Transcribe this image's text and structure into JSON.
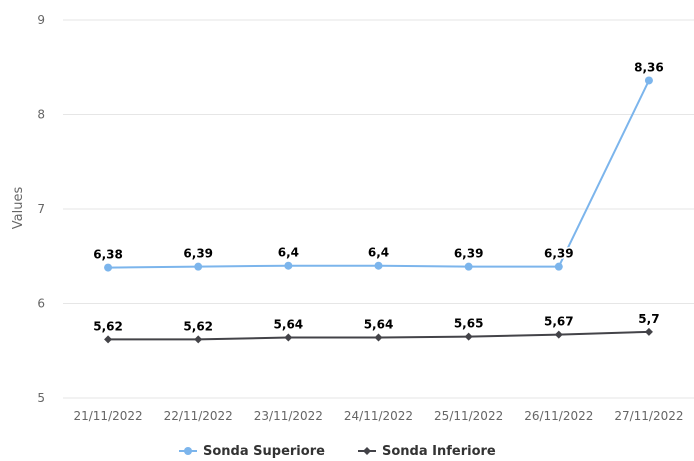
{
  "chart_data": {
    "type": "line",
    "title": "",
    "xlabel": "",
    "ylabel": "Values",
    "ylim": [
      5,
      9
    ],
    "y_ticks": [
      5,
      6,
      7,
      8,
      9
    ],
    "grid": true,
    "legend_position": "bottom-center",
    "categories": [
      "21/11/2022",
      "22/11/2022",
      "23/11/2022",
      "24/11/2022",
      "25/11/2022",
      "26/11/2022",
      "27/11/2022"
    ],
    "series": [
      {
        "name": "Sonda Superiore",
        "color": "#7cb5ec",
        "marker": "circle",
        "values": [
          6.38,
          6.39,
          6.4,
          6.4,
          6.39,
          6.39,
          8.36
        ],
        "labels": [
          "6,38",
          "6,39",
          "6,4",
          "6,4",
          "6,39",
          "6,39",
          "8,36"
        ]
      },
      {
        "name": "Sonda Inferiore",
        "color": "#434348",
        "marker": "diamond",
        "values": [
          5.62,
          5.62,
          5.64,
          5.64,
          5.65,
          5.67,
          5.7
        ],
        "labels": [
          "5,62",
          "5,62",
          "5,64",
          "5,64",
          "5,65",
          "5,67",
          "5,7"
        ]
      }
    ]
  }
}
